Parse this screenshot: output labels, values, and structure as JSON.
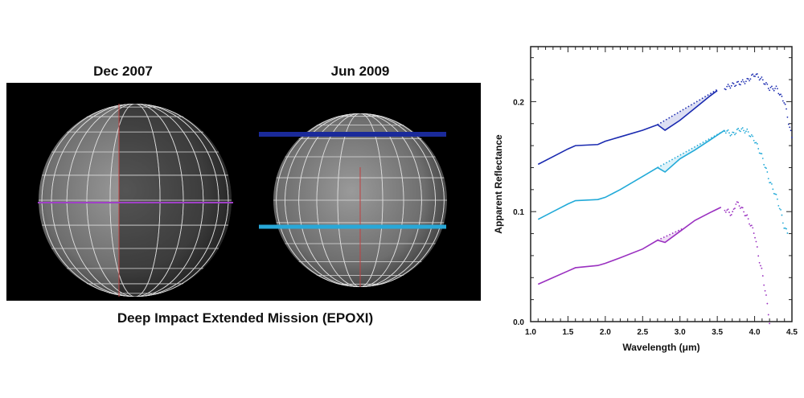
{
  "images": {
    "left_title": "Dec 2007",
    "right_title": "Jun 2009",
    "caption": "Deep Impact Extended Mission (EPOXI)",
    "left_line_color": "#a040c8",
    "right_line_colors": [
      "#1a2a9a",
      "#28a8d8"
    ]
  },
  "chart_data": {
    "type": "line",
    "title": "",
    "xlabel": "Wavelength (μm)",
    "ylabel": "Apparent Reflectance",
    "xlim": [
      1.0,
      4.5
    ],
    "ylim": [
      0.0,
      0.25
    ],
    "xticks": [
      "1.0",
      "1.5",
      "2.0",
      "2.5",
      "3.0",
      "3.5",
      "4.0",
      "4.5"
    ],
    "yticks": [
      "0.0",
      "0.1",
      "0.2"
    ],
    "grid": false,
    "series": [
      {
        "color": "#1a2ab0",
        "x": [
          1.1,
          1.3,
          1.5,
          1.6,
          1.9,
          2.0,
          2.2,
          2.5,
          2.7,
          2.8,
          3.0,
          3.2,
          3.4,
          3.5,
          3.7,
          3.9,
          4.0,
          4.1,
          4.2,
          4.3,
          4.35,
          4.4,
          4.45,
          4.5
        ],
        "y": [
          0.143,
          0.15,
          0.157,
          0.16,
          0.161,
          0.164,
          0.168,
          0.174,
          0.179,
          0.174,
          0.183,
          0.194,
          0.205,
          0.21,
          0.215,
          0.219,
          0.225,
          0.22,
          0.212,
          0.212,
          0.205,
          0.2,
          0.183,
          0.167
        ],
        "continuum": {
          "x": [
            2.7,
            3.5
          ],
          "y": [
            0.179,
            0.211
          ]
        }
      },
      {
        "color": "#22aad8",
        "x": [
          1.1,
          1.3,
          1.5,
          1.6,
          1.9,
          2.0,
          2.2,
          2.5,
          2.7,
          2.8,
          3.0,
          3.2,
          3.4,
          3.6,
          3.7,
          3.8,
          3.9,
          4.0,
          4.1,
          4.2,
          4.25,
          4.3,
          4.35,
          4.4,
          4.45
        ],
        "y": [
          0.093,
          0.1,
          0.107,
          0.11,
          0.111,
          0.113,
          0.12,
          0.132,
          0.14,
          0.136,
          0.148,
          0.156,
          0.165,
          0.174,
          0.17,
          0.175,
          0.173,
          0.165,
          0.15,
          0.128,
          0.12,
          0.112,
          0.1,
          0.085,
          0.08
        ],
        "continuum": {
          "x": [
            2.7,
            3.55
          ],
          "y": [
            0.14,
            0.172
          ]
        }
      },
      {
        "color": "#9a30c0",
        "x": [
          1.1,
          1.3,
          1.5,
          1.6,
          1.9,
          2.0,
          2.2,
          2.5,
          2.7,
          2.8,
          3.0,
          3.2,
          3.4,
          3.55,
          3.65,
          3.7,
          3.75,
          3.8,
          3.9,
          4.0,
          4.05,
          4.1,
          4.15,
          4.2
        ],
        "y": [
          0.034,
          0.04,
          0.046,
          0.049,
          0.051,
          0.053,
          0.058,
          0.066,
          0.074,
          0.072,
          0.082,
          0.092,
          0.099,
          0.104,
          0.1,
          0.097,
          0.108,
          0.106,
          0.095,
          0.08,
          0.06,
          0.045,
          0.025,
          0.0
        ],
        "continuum": {
          "x": [
            2.7,
            3.05
          ],
          "y": [
            0.074,
            0.085
          ]
        }
      }
    ]
  }
}
